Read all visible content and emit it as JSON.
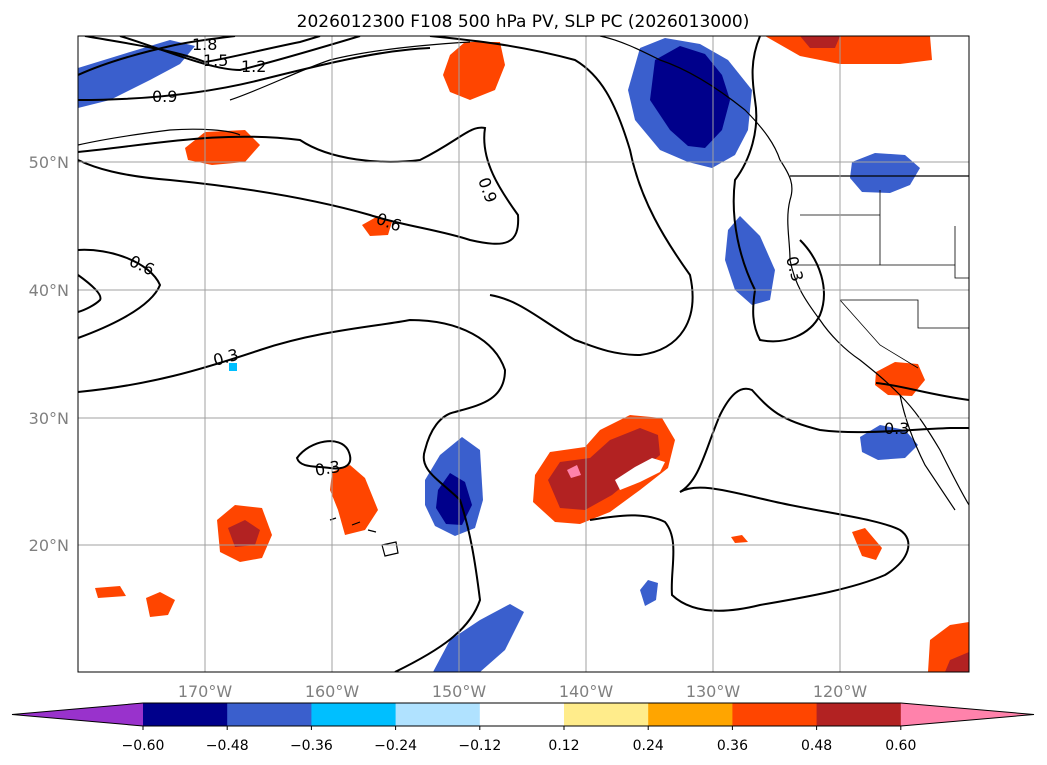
{
  "chart_data": {
    "type": "heatmap",
    "title": "2026012300 F108 500 hPa PV, SLP PC (2026013000)",
    "map": {
      "x_ticks": [
        "170°W",
        "160°W",
        "150°W",
        "140°W",
        "130°W",
        "120°W"
      ],
      "y_ticks": [
        "50°N",
        "40°N",
        "30°N",
        "20°N"
      ],
      "grid": true
    },
    "colorbar": {
      "orientation": "horizontal",
      "extend": "both",
      "tick_labels": [
        "−0.60",
        "−0.48",
        "−0.36",
        "−0.24",
        "−0.12",
        "0.12",
        "0.24",
        "0.36",
        "0.48",
        "0.60"
      ],
      "colors": [
        "#9932cc",
        "#00008b",
        "#3a5fcd",
        "#00bfff",
        "#b0e2ff",
        "#ffffff",
        "#ffec8b",
        "#ffa500",
        "#ff4500",
        "#b22222",
        "#ff82ab"
      ]
    },
    "contour_labels": [
      "1.8",
      "1.5",
      "1.2",
      "0.9",
      "0.9",
      "0.6",
      "0.6",
      "0.3",
      "0.3",
      "0.3",
      "0.3"
    ]
  }
}
